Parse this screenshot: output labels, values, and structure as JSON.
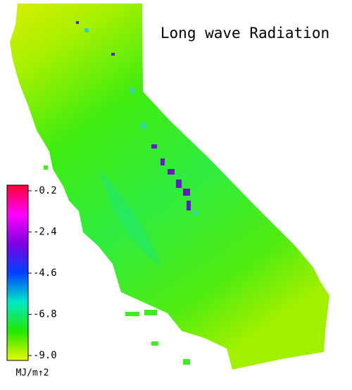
{
  "map": {
    "title": "Long wave Radiation",
    "colorbar": {
      "label": "MJ/m↑2",
      "lim": [
        -9,
        -0.2
      ],
      "ticks": [
        -0.2,
        -2.4,
        -4.6,
        -6.8,
        {
          "value": -9,
          "label": "-9.0"
        }
      ],
      "colors": [
        "#e8f800",
        "#22e800",
        "#00e8c8",
        "#0040ff",
        "#8000e0",
        "#ff00ff",
        "#ff0030"
      ]
    }
  }
}
